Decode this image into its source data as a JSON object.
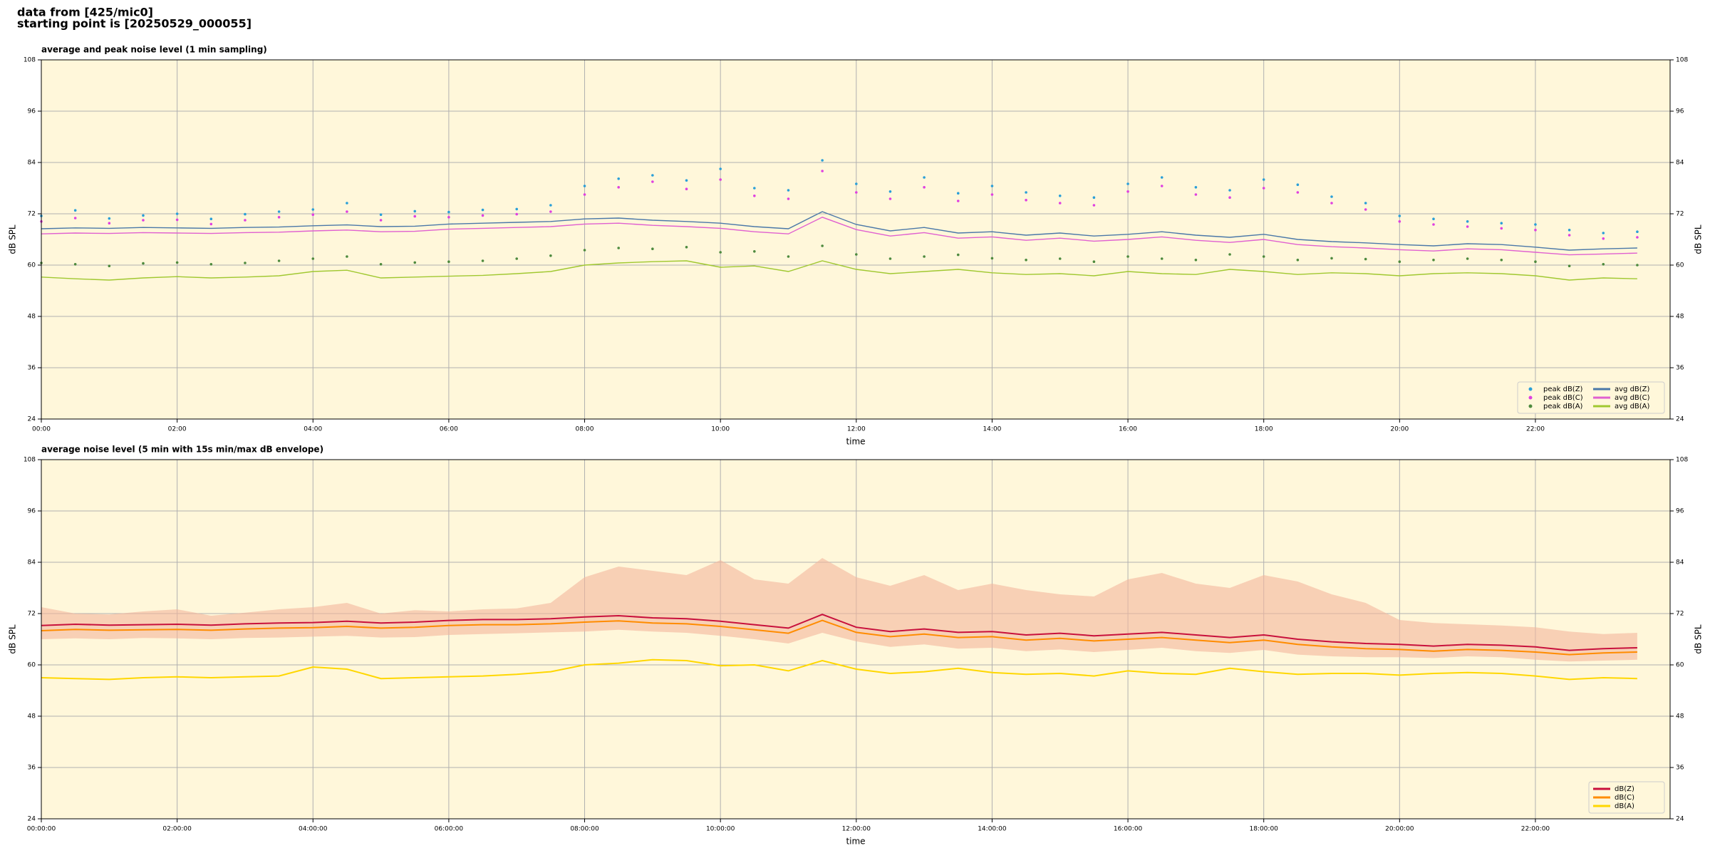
{
  "header": {
    "lines": [
      "data from [425/mic0]",
      "starting point is [20250529_000055]"
    ]
  },
  "chart_data": [
    {
      "type": "line",
      "title": "average and peak noise level (1 min sampling)",
      "xlabel": "time",
      "ylabel": "dB SPL",
      "xlim": [
        "00:00",
        "23:59"
      ],
      "xticks": [
        "00:00",
        "02:00",
        "04:00",
        "06:00",
        "08:00",
        "10:00",
        "12:00",
        "14:00",
        "16:00",
        "18:00",
        "20:00",
        "22:00"
      ],
      "ylim": [
        24,
        108
      ],
      "yticks": [
        24,
        36,
        48,
        60,
        72,
        84,
        96,
        108
      ],
      "grid": true,
      "legend": "lower right",
      "legend_columns": 2,
      "x": [
        "00:00",
        "00:30",
        "01:00",
        "01:30",
        "02:00",
        "02:30",
        "03:00",
        "03:30",
        "04:00",
        "04:30",
        "05:00",
        "05:30",
        "06:00",
        "06:30",
        "07:00",
        "07:30",
        "08:00",
        "08:30",
        "09:00",
        "09:30",
        "10:00",
        "10:30",
        "11:00",
        "11:30",
        "12:00",
        "12:30",
        "13:00",
        "13:30",
        "14:00",
        "14:30",
        "15:00",
        "15:30",
        "16:00",
        "16:30",
        "17:00",
        "17:30",
        "18:00",
        "18:30",
        "19:00",
        "19:30",
        "20:00",
        "20:30",
        "21:00",
        "21:30",
        "22:00",
        "22:30",
        "23:00",
        "23:30"
      ],
      "series": [
        {
          "name": "peak dB(Z)",
          "style": "dot",
          "color": "#2a9fd8",
          "values": [
            71.5,
            72.8,
            70.9,
            71.6,
            72.0,
            70.8,
            71.9,
            72.5,
            73.0,
            74.5,
            71.8,
            72.6,
            72.4,
            72.9,
            73.1,
            74.0,
            78.5,
            80.2,
            81.0,
            79.8,
            82.5,
            78.0,
            77.5,
            84.5,
            79.0,
            77.2,
            80.5,
            76.8,
            78.5,
            77.0,
            76.2,
            75.8,
            79.0,
            80.5,
            78.2,
            77.5,
            80.0,
            78.8,
            76.0,
            74.5,
            71.5,
            70.8,
            70.2,
            69.8,
            69.5,
            68.2,
            67.5,
            67.8
          ]
        },
        {
          "name": "peak dB(C)",
          "style": "dot",
          "color": "#e040e0",
          "values": [
            70.2,
            71.0,
            69.8,
            70.5,
            70.6,
            69.6,
            70.5,
            71.2,
            71.8,
            72.5,
            70.5,
            71.4,
            71.2,
            71.6,
            71.9,
            72.5,
            76.5,
            78.2,
            79.5,
            77.8,
            80.0,
            76.2,
            75.5,
            82.0,
            77.0,
            75.5,
            78.2,
            75.0,
            76.5,
            75.2,
            74.5,
            74.0,
            77.2,
            78.5,
            76.5,
            75.8,
            78.0,
            77.0,
            74.5,
            73.0,
            70.2,
            69.5,
            69.0,
            68.6,
            68.2,
            67.0,
            66.2,
            66.5
          ]
        },
        {
          "name": "peak dB(A)",
          "style": "dot",
          "color": "#4e8a3e",
          "values": [
            60.5,
            60.2,
            59.8,
            60.4,
            60.6,
            60.2,
            60.5,
            61.0,
            61.5,
            62.0,
            60.2,
            60.6,
            60.8,
            61.0,
            61.5,
            62.2,
            63.5,
            64.0,
            63.8,
            64.2,
            63.0,
            63.2,
            62.0,
            64.5,
            62.5,
            61.5,
            62.0,
            62.4,
            61.6,
            61.2,
            61.5,
            60.8,
            62.0,
            61.5,
            61.2,
            62.5,
            62.0,
            61.2,
            61.6,
            61.4,
            60.8,
            61.2,
            61.5,
            61.2,
            60.8,
            59.8,
            60.2,
            60.0
          ]
        },
        {
          "name": "avg dB(Z)",
          "style": "line",
          "color": "#4a78a8",
          "values": [
            68.5,
            68.7,
            68.6,
            68.8,
            68.7,
            68.6,
            68.8,
            68.9,
            69.2,
            69.4,
            69.0,
            69.1,
            69.6,
            69.8,
            70.0,
            70.2,
            70.8,
            71.0,
            70.5,
            70.2,
            69.8,
            69.0,
            68.5,
            72.5,
            69.5,
            68.0,
            68.8,
            67.5,
            67.8,
            67.0,
            67.5,
            66.8,
            67.2,
            67.8,
            67.0,
            66.5,
            67.2,
            66.0,
            65.5,
            65.2,
            64.8,
            64.5,
            65.0,
            64.8,
            64.2,
            63.5,
            63.8,
            64.0
          ]
        },
        {
          "name": "avg dB(C)",
          "style": "line",
          "color": "#e060d0",
          "values": [
            67.3,
            67.5,
            67.4,
            67.6,
            67.5,
            67.4,
            67.6,
            67.7,
            68.0,
            68.2,
            67.8,
            67.9,
            68.4,
            68.6,
            68.8,
            69.0,
            69.6,
            69.8,
            69.3,
            69.0,
            68.6,
            67.8,
            67.3,
            71.2,
            68.3,
            66.8,
            67.6,
            66.3,
            66.6,
            65.8,
            66.3,
            65.6,
            66.0,
            66.6,
            65.8,
            65.3,
            66.0,
            64.8,
            64.3,
            64.0,
            63.6,
            63.3,
            63.8,
            63.6,
            63.0,
            62.4,
            62.6,
            62.8
          ]
        },
        {
          "name": "avg dB(A)",
          "style": "line",
          "color": "#a0c830",
          "values": [
            57.2,
            56.8,
            56.5,
            57.0,
            57.3,
            57.0,
            57.2,
            57.5,
            58.5,
            58.8,
            57.0,
            57.2,
            57.4,
            57.6,
            58.0,
            58.5,
            60.0,
            60.5,
            60.8,
            61.0,
            59.5,
            59.8,
            58.5,
            61.0,
            59.0,
            58.0,
            58.5,
            59.0,
            58.2,
            57.8,
            58.0,
            57.5,
            58.5,
            58.0,
            57.8,
            59.0,
            58.5,
            57.8,
            58.2,
            58.0,
            57.5,
            58.0,
            58.2,
            58.0,
            57.5,
            56.5,
            57.0,
            56.8
          ]
        }
      ]
    },
    {
      "type": "line",
      "title": "average noise level (5 min with 15s min/max dB envelope)",
      "xlabel": "time",
      "ylabel": "dB SPL",
      "xlim": [
        "00:00:00",
        "23:59:00"
      ],
      "xticks": [
        "00:00:00",
        "02:00:00",
        "04:00:00",
        "06:00:00",
        "08:00:00",
        "10:00:00",
        "12:00:00",
        "14:00:00",
        "16:00:00",
        "18:00:00",
        "20:00:00",
        "22:00:00"
      ],
      "ylim": [
        24,
        108
      ],
      "yticks": [
        24,
        36,
        48,
        60,
        72,
        84,
        96,
        108
      ],
      "grid": true,
      "legend": "lower right",
      "legend_columns": 1,
      "x": [
        "00:00:00",
        "00:30:00",
        "01:00:00",
        "01:30:00",
        "02:00:00",
        "02:30:00",
        "03:00:00",
        "03:30:00",
        "04:00:00",
        "04:30:00",
        "05:00:00",
        "05:30:00",
        "06:00:00",
        "06:30:00",
        "07:00:00",
        "07:30:00",
        "08:00:00",
        "08:30:00",
        "09:00:00",
        "09:30:00",
        "10:00:00",
        "10:30:00",
        "11:00:00",
        "11:30:00",
        "12:00:00",
        "12:30:00",
        "13:00:00",
        "13:30:00",
        "14:00:00",
        "14:30:00",
        "15:00:00",
        "15:30:00",
        "16:00:00",
        "16:30:00",
        "17:00:00",
        "17:30:00",
        "18:00:00",
        "18:30:00",
        "19:00:00",
        "19:30:00",
        "20:00:00",
        "20:30:00",
        "21:00:00",
        "21:30:00",
        "22:00:00",
        "22:30:00",
        "23:00:00",
        "23:30:00"
      ],
      "envelope": {
        "color": "#f4b69c",
        "upper": [
          73.5,
          72.0,
          71.8,
          72.5,
          73.0,
          71.5,
          72.2,
          73.0,
          73.5,
          74.5,
          72.0,
          72.8,
          72.5,
          73.0,
          73.2,
          74.5,
          80.5,
          83.0,
          82.0,
          81.0,
          84.5,
          80.0,
          79.0,
          85.0,
          80.5,
          78.5,
          81.0,
          77.5,
          79.0,
          77.5,
          76.5,
          76.0,
          80.0,
          81.5,
          79.0,
          78.0,
          81.0,
          79.5,
          76.5,
          74.5,
          70.5,
          69.8,
          69.5,
          69.2,
          68.8,
          67.8,
          67.2,
          67.5
        ],
        "lower": [
          66.0,
          66.2,
          66.0,
          66.3,
          66.2,
          66.0,
          66.3,
          66.4,
          66.6,
          66.8,
          66.4,
          66.5,
          67.0,
          67.2,
          67.4,
          67.6,
          67.8,
          68.2,
          67.8,
          67.5,
          66.8,
          66.0,
          65.0,
          67.5,
          65.5,
          64.2,
          64.8,
          63.8,
          64.0,
          63.2,
          63.6,
          63.0,
          63.5,
          64.0,
          63.2,
          62.8,
          63.5,
          62.4,
          62.0,
          61.8,
          61.8,
          61.6,
          62.0,
          61.8,
          61.2,
          60.8,
          61.0,
          61.2
        ]
      },
      "series": [
        {
          "name": "dB(Z)",
          "style": "line",
          "color": "#c8103c",
          "values": [
            69.2,
            69.5,
            69.3,
            69.4,
            69.5,
            69.3,
            69.6,
            69.8,
            69.9,
            70.2,
            69.8,
            70.0,
            70.4,
            70.6,
            70.6,
            70.8,
            71.2,
            71.5,
            71.0,
            70.8,
            70.2,
            69.4,
            68.6,
            71.8,
            68.8,
            67.8,
            68.4,
            67.6,
            67.8,
            67.0,
            67.4,
            66.8,
            67.2,
            67.6,
            67.0,
            66.4,
            67.0,
            66.0,
            65.4,
            65.0,
            64.8,
            64.4,
            64.8,
            64.6,
            64.2,
            63.4,
            63.8,
            64.0
          ]
        },
        {
          "name": "dB(C)",
          "style": "line",
          "color": "#ff8c00",
          "values": [
            68.0,
            68.3,
            68.1,
            68.2,
            68.3,
            68.1,
            68.4,
            68.6,
            68.7,
            69.0,
            68.6,
            68.8,
            69.2,
            69.4,
            69.4,
            69.6,
            70.0,
            70.3,
            69.8,
            69.6,
            69.0,
            68.2,
            67.4,
            70.4,
            67.6,
            66.6,
            67.2,
            66.4,
            66.6,
            65.8,
            66.2,
            65.6,
            66.0,
            66.4,
            65.8,
            65.2,
            65.8,
            64.8,
            64.2,
            63.8,
            63.6,
            63.2,
            63.6,
            63.4,
            63.0,
            62.4,
            62.8,
            63.0
          ]
        },
        {
          "name": "dB(A)",
          "style": "line",
          "color": "#ffd700",
          "values": [
            57.0,
            56.8,
            56.6,
            57.0,
            57.2,
            57.0,
            57.2,
            57.4,
            59.5,
            59.0,
            56.8,
            57.0,
            57.2,
            57.4,
            57.8,
            58.4,
            60.0,
            60.4,
            61.2,
            61.0,
            59.8,
            60.0,
            58.6,
            61.0,
            59.0,
            58.0,
            58.4,
            59.2,
            58.2,
            57.8,
            58.0,
            57.4,
            58.6,
            58.0,
            57.8,
            59.2,
            58.4,
            57.8,
            58.0,
            58.0,
            57.6,
            58.0,
            58.2,
            58.0,
            57.4,
            56.6,
            57.0,
            56.8
          ]
        }
      ]
    }
  ]
}
